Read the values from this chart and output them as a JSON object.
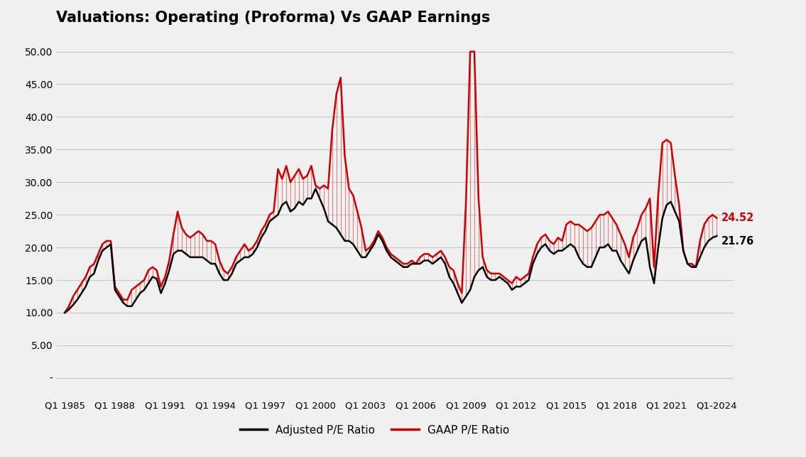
{
  "title": "Valuations: Operating (Proforma) Vs GAAP Earnings",
  "title_fontsize": 15,
  "background_color": "#f0f0f0",
  "adjusted_color": "#000000",
  "gaap_color": "#cc0000",
  "label_adjusted": "Adjusted P/E Ratio",
  "label_gaap": "GAAP P/E Ratio",
  "end_label_gaap": "24.52",
  "end_label_adjusted": "21.76",
  "ytick_values": [
    0,
    5,
    10,
    15,
    20,
    25,
    30,
    35,
    40,
    45,
    50
  ],
  "ytick_labels": [
    "-",
    "5.00",
    "10.00",
    "15.00",
    "20.00",
    "25.00",
    "30.00",
    "35.00",
    "40.00",
    "45.00",
    "50.00"
  ],
  "ylim": [
    -3,
    53
  ],
  "xlabel_ticks": [
    "Q1 1985",
    "Q1 1988",
    "Q1 1991",
    "Q1 1994",
    "Q1 1997",
    "Q1 2000",
    "Q1 2003",
    "Q1 2006",
    "Q1 2009",
    "Q1 2012",
    "Q1 2015",
    "Q1 2018",
    "Q1 2021",
    "Q1-2024"
  ],
  "years_labeled": [
    1985,
    1988,
    1991,
    1994,
    1997,
    2000,
    2003,
    2006,
    2009,
    2012,
    2015,
    2018,
    2021,
    2024
  ],
  "year_start": 1985,
  "adjusted_pe": [
    10.0,
    10.5,
    11.2,
    12.0,
    13.0,
    14.0,
    15.5,
    16.0,
    18.0,
    19.5,
    20.0,
    20.5,
    13.5,
    12.5,
    11.5,
    11.0,
    11.0,
    12.0,
    13.0,
    13.5,
    14.5,
    15.5,
    15.2,
    13.0,
    14.5,
    16.5,
    19.0,
    19.5,
    19.5,
    19.0,
    18.5,
    18.5,
    18.5,
    18.5,
    18.0,
    17.5,
    17.5,
    16.0,
    15.0,
    15.0,
    16.0,
    17.5,
    18.0,
    18.5,
    18.5,
    19.0,
    20.0,
    21.5,
    22.5,
    24.0,
    24.5,
    25.0,
    26.5,
    27.0,
    25.5,
    26.0,
    27.0,
    26.5,
    27.5,
    27.5,
    29.0,
    27.5,
    26.0,
    24.0,
    23.5,
    23.0,
    22.0,
    21.0,
    21.0,
    20.5,
    19.5,
    18.5,
    18.5,
    19.5,
    20.5,
    22.0,
    21.0,
    19.5,
    18.5,
    18.0,
    17.5,
    17.0,
    17.0,
    17.5,
    17.5,
    17.5,
    18.0,
    18.0,
    17.5,
    18.0,
    18.5,
    17.5,
    15.5,
    14.5,
    13.0,
    11.5,
    12.5,
    13.5,
    15.5,
    16.5,
    17.0,
    15.5,
    15.0,
    15.0,
    15.5,
    15.0,
    14.5,
    13.5,
    14.0,
    14.0,
    14.5,
    15.0,
    17.5,
    19.0,
    20.0,
    20.5,
    19.5,
    19.0,
    19.5,
    19.5,
    20.0,
    20.5,
    20.0,
    18.5,
    17.5,
    17.0,
    17.0,
    18.5,
    20.0,
    20.0,
    20.5,
    19.5,
    19.5,
    18.0,
    17.0,
    16.0,
    18.0,
    19.5,
    21.0,
    21.5,
    17.0,
    14.5,
    20.0,
    24.5,
    26.5,
    27.0,
    25.5,
    24.0,
    19.5,
    17.5,
    17.0,
    17.0,
    18.5,
    20.0,
    21.0,
    21.5,
    21.76
  ],
  "gaap_pe": [
    10.0,
    11.0,
    12.5,
    13.5,
    14.5,
    15.5,
    17.0,
    17.5,
    19.0,
    20.5,
    21.0,
    21.0,
    14.0,
    13.0,
    12.0,
    12.0,
    13.5,
    14.0,
    14.5,
    15.0,
    16.5,
    17.0,
    16.5,
    14.0,
    15.5,
    18.0,
    22.0,
    25.5,
    23.0,
    22.0,
    21.5,
    22.0,
    22.5,
    22.0,
    21.0,
    21.0,
    20.5,
    18.0,
    16.5,
    16.0,
    17.0,
    18.5,
    19.5,
    20.5,
    19.5,
    20.0,
    21.0,
    22.5,
    23.5,
    25.0,
    25.5,
    32.0,
    30.5,
    32.5,
    30.0,
    31.0,
    32.0,
    30.5,
    31.0,
    32.5,
    29.5,
    29.0,
    29.5,
    29.0,
    38.0,
    43.5,
    46.0,
    34.0,
    29.0,
    28.0,
    25.5,
    23.0,
    19.5,
    20.0,
    21.0,
    22.5,
    21.5,
    20.0,
    19.0,
    18.5,
    18.0,
    17.5,
    17.5,
    18.0,
    17.5,
    18.5,
    19.0,
    19.0,
    18.5,
    19.0,
    19.5,
    18.5,
    17.0,
    16.5,
    14.5,
    13.0,
    27.0,
    50.0,
    50.0,
    27.5,
    18.5,
    16.5,
    16.0,
    16.0,
    16.0,
    15.5,
    15.0,
    14.5,
    15.5,
    15.0,
    15.5,
    16.0,
    18.5,
    20.5,
    21.5,
    22.0,
    21.0,
    20.5,
    21.5,
    21.0,
    23.5,
    24.0,
    23.5,
    23.5,
    23.0,
    22.5,
    23.0,
    24.0,
    25.0,
    25.0,
    25.5,
    24.5,
    23.5,
    22.0,
    20.5,
    18.5,
    21.5,
    23.0,
    25.0,
    26.0,
    27.5,
    17.0,
    28.0,
    36.0,
    36.5,
    36.0,
    31.0,
    26.5,
    19.5,
    17.5,
    17.5,
    17.0,
    21.0,
    23.5,
    24.5,
    25.0,
    24.52
  ]
}
